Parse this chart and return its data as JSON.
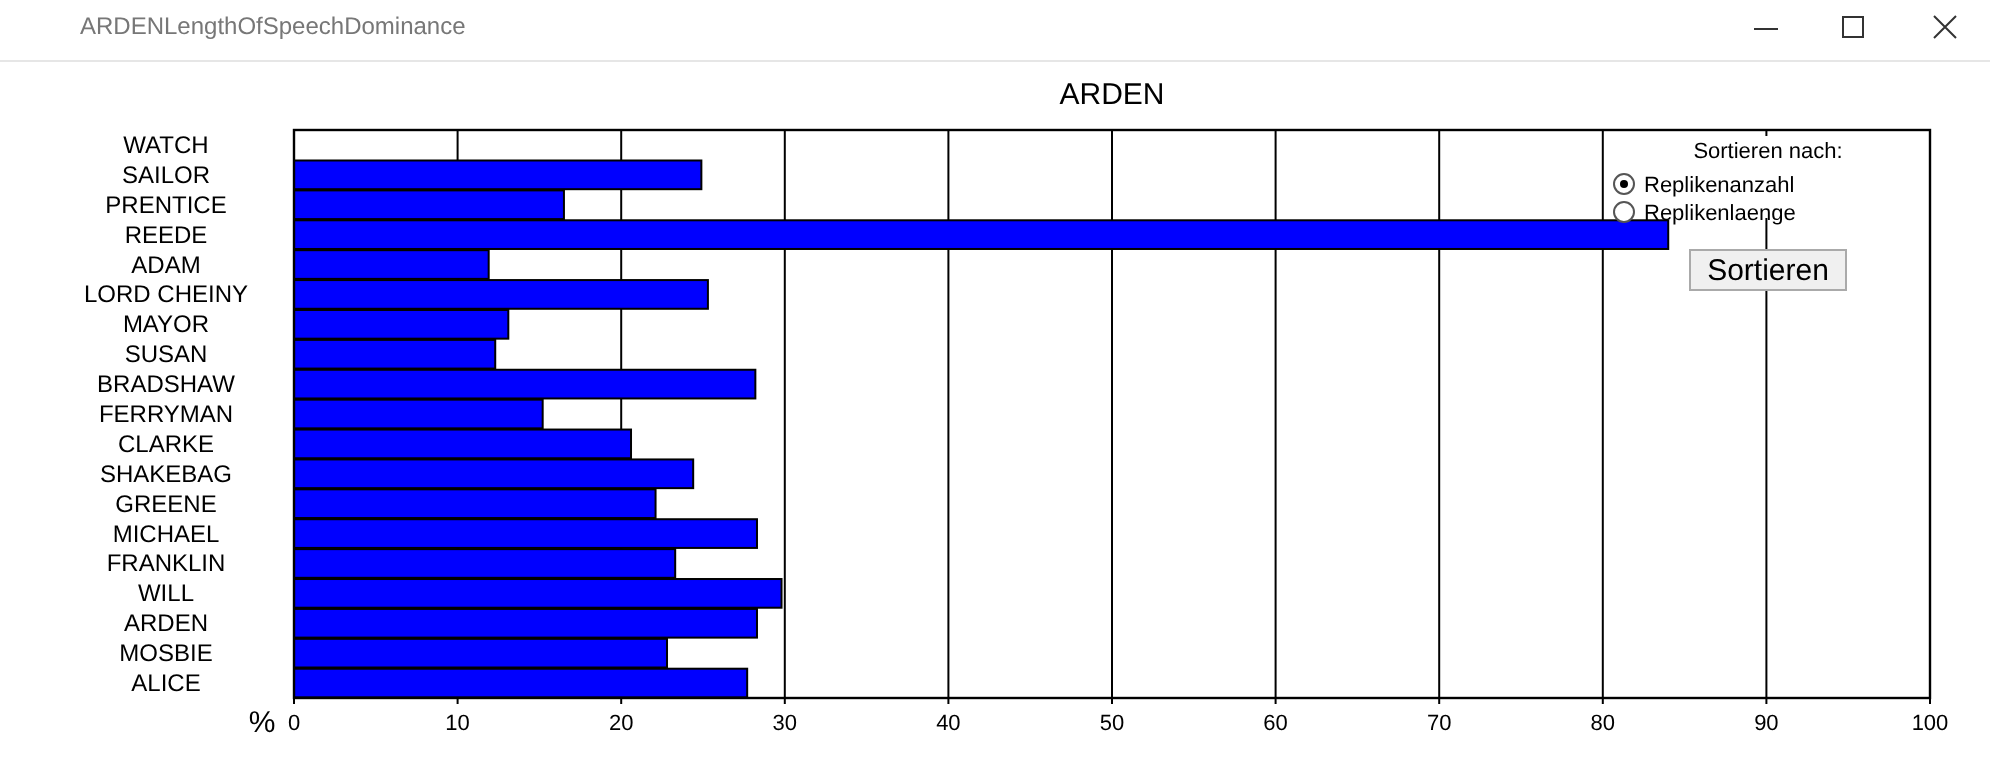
{
  "chart_data": {
    "type": "bar",
    "orientation": "horizontal",
    "title": "ARDEN",
    "xlabel": "%",
    "categories": [
      "WATCH",
      "SAILOR",
      "PRENTICE",
      "REEDE",
      "ADAM",
      "LORD CHEINY",
      "MAYOR",
      "SUSAN",
      "BRADSHAW",
      "FERRYMAN",
      "CLARKE",
      "SHAKEBAG",
      "GREENE",
      "MICHAEL",
      "FRANKLIN",
      "WILL",
      "ARDEN",
      "MOSBIE",
      "ALICE"
    ],
    "values": [
      0,
      24.9,
      16.5,
      84,
      11.9,
      25.3,
      13.1,
      12.3,
      28.2,
      15.2,
      20.6,
      24.4,
      22.1,
      28.3,
      23.3,
      29.8,
      28.3,
      22.8,
      27.7
    ],
    "color": "#0000ff",
    "xlim": [
      0,
      100
    ],
    "xticks": [
      0,
      10,
      20,
      30,
      40,
      50,
      60,
      70,
      80,
      90,
      100
    ],
    "grid": "x",
    "annotations": [
      "ARDENLengthOfSpeechDominance",
      "Sortieren nach:",
      "Replikenanzahl",
      "Replikenlaenge",
      "Sortieren"
    ]
  }
}
